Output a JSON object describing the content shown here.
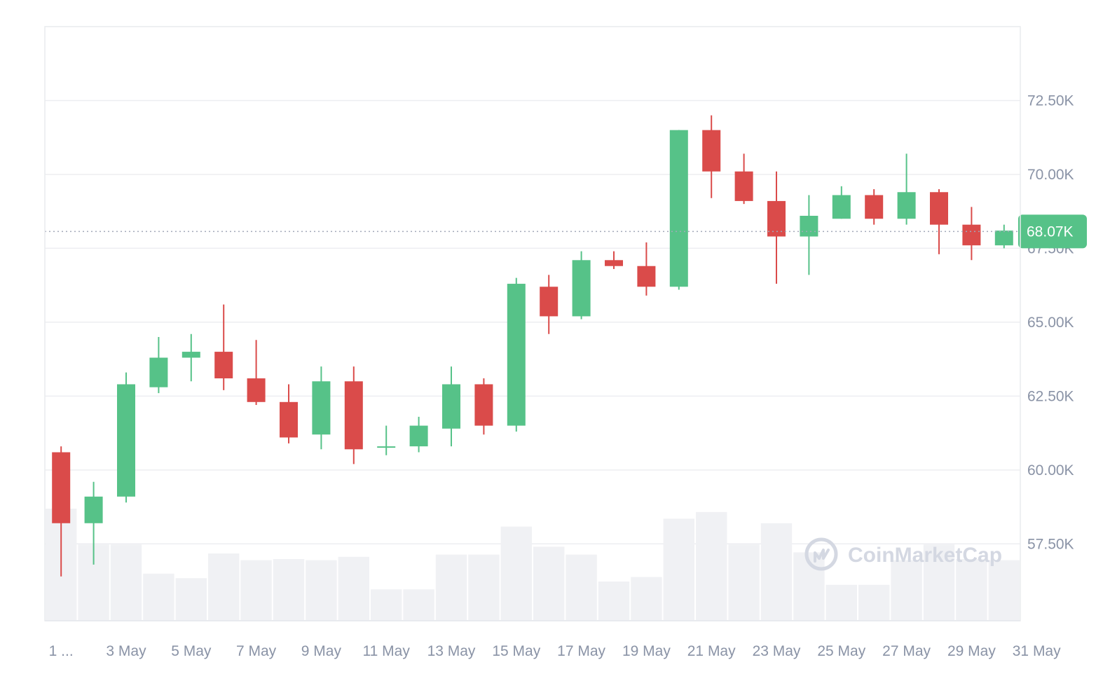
{
  "chart_data": {
    "type": "candlestick",
    "x_labels": [
      "1 ...",
      "3 May",
      "5 May",
      "7 May",
      "9 May",
      "11 May",
      "13 May",
      "15 May",
      "17 May",
      "19 May",
      "21 May",
      "23 May",
      "25 May",
      "27 May",
      "29 May",
      "31 May"
    ],
    "y_ticks": [
      {
        "value": 57500,
        "label": "57.50K"
      },
      {
        "value": 60000,
        "label": "60.00K"
      },
      {
        "value": 62500,
        "label": "62.50K"
      },
      {
        "value": 65000,
        "label": "65.00K"
      },
      {
        "value": 67500,
        "label": "67.50K"
      },
      {
        "value": 70000,
        "label": "70.00K"
      },
      {
        "value": 72500,
        "label": "72.50K"
      }
    ],
    "ylim": [
      54900,
      75000
    ],
    "current_price": {
      "value": 68070,
      "label": "68.07K"
    },
    "colors": {
      "up": "#56c288",
      "down": "#da4b4a",
      "volume": "#f0f1f4",
      "price_tag": "#56c288",
      "grid": "#edeef1"
    },
    "watermark": "CoinMarketCap",
    "candles": [
      {
        "date": "1 May",
        "open": 60600,
        "high": 60800,
        "low": 56400,
        "close": 58200
      },
      {
        "date": "2 May",
        "open": 58200,
        "high": 59600,
        "low": 56800,
        "close": 59100
      },
      {
        "date": "3 May",
        "open": 59100,
        "high": 63300,
        "low": 58900,
        "close": 62900
      },
      {
        "date": "4 May",
        "open": 62800,
        "high": 64500,
        "low": 62600,
        "close": 63800
      },
      {
        "date": "5 May",
        "open": 63800,
        "high": 64600,
        "low": 63000,
        "close": 64000
      },
      {
        "date": "6 May",
        "open": 64000,
        "high": 65600,
        "low": 62700,
        "close": 63100
      },
      {
        "date": "7 May",
        "open": 63100,
        "high": 64400,
        "low": 62200,
        "close": 62300
      },
      {
        "date": "8 May",
        "open": 62300,
        "high": 62900,
        "low": 60900,
        "close": 61100
      },
      {
        "date": "9 May",
        "open": 61200,
        "high": 63500,
        "low": 60700,
        "close": 63000
      },
      {
        "date": "10 May",
        "open": 63000,
        "high": 63500,
        "low": 60200,
        "close": 60700
      },
      {
        "date": "11 May",
        "open": 60800,
        "high": 61500,
        "low": 60500,
        "close": 60800
      },
      {
        "date": "12 May",
        "open": 60800,
        "high": 61800,
        "low": 60600,
        "close": 61500
      },
      {
        "date": "13 May",
        "open": 61400,
        "high": 63500,
        "low": 60800,
        "close": 62900
      },
      {
        "date": "14 May",
        "open": 62900,
        "high": 63100,
        "low": 61200,
        "close": 61500
      },
      {
        "date": "15 May",
        "open": 61500,
        "high": 66500,
        "low": 61300,
        "close": 66300
      },
      {
        "date": "16 May",
        "open": 66200,
        "high": 66600,
        "low": 64600,
        "close": 65200
      },
      {
        "date": "17 May",
        "open": 65200,
        "high": 67400,
        "low": 65100,
        "close": 67100
      },
      {
        "date": "18 May",
        "open": 67100,
        "high": 67400,
        "low": 66800,
        "close": 66900
      },
      {
        "date": "19 May",
        "open": 66900,
        "high": 67700,
        "low": 65900,
        "close": 66200
      },
      {
        "date": "20 May",
        "open": 66200,
        "high": 71500,
        "low": 66100,
        "close": 71500
      },
      {
        "date": "21 May",
        "open": 71500,
        "high": 72000,
        "low": 69200,
        "close": 70100
      },
      {
        "date": "22 May",
        "open": 70100,
        "high": 70700,
        "low": 69000,
        "close": 69100
      },
      {
        "date": "23 May",
        "open": 69100,
        "high": 70100,
        "low": 66300,
        "close": 67900
      },
      {
        "date": "24 May",
        "open": 67900,
        "high": 69300,
        "low": 66600,
        "close": 68600
      },
      {
        "date": "25 May",
        "open": 68500,
        "high": 69600,
        "low": 68500,
        "close": 69300
      },
      {
        "date": "26 May",
        "open": 69300,
        "high": 69500,
        "low": 68300,
        "close": 68500
      },
      {
        "date": "27 May",
        "open": 68500,
        "high": 70700,
        "low": 68300,
        "close": 69400
      },
      {
        "date": "28 May",
        "open": 69400,
        "high": 69500,
        "low": 67300,
        "close": 68300
      },
      {
        "date": "29 May",
        "open": 68300,
        "high": 68900,
        "low": 67100,
        "close": 67600
      },
      {
        "date": "30 May",
        "open": 67600,
        "high": 68300,
        "low": 67500,
        "close": 68100
      }
    ],
    "volume_relative": [
      1.0,
      0.68,
      0.68,
      0.42,
      0.38,
      0.6,
      0.54,
      0.55,
      0.54,
      0.57,
      0.28,
      0.28,
      0.59,
      0.59,
      0.84,
      0.66,
      0.59,
      0.35,
      0.39,
      0.91,
      0.97,
      0.68,
      0.87,
      0.61,
      0.32,
      0.32,
      0.54,
      0.68,
      0.55,
      0.54
    ]
  }
}
